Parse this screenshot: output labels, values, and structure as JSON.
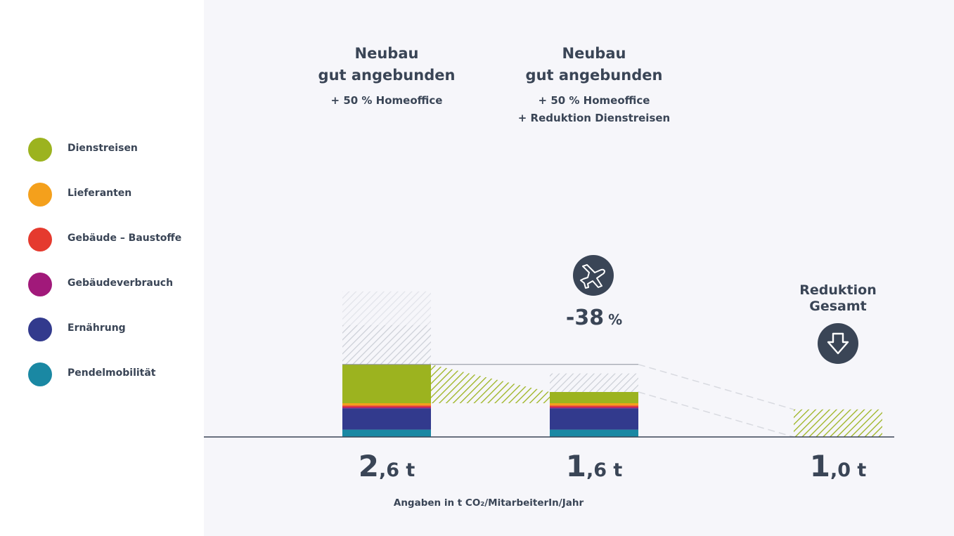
{
  "legend": [
    {
      "label": "Dienstreisen",
      "color": "#9cb31f"
    },
    {
      "label": "Lieferanten",
      "color": "#f4a01c"
    },
    {
      "label": "Gebäude – Baustoffe",
      "color": "#e53a2e"
    },
    {
      "label": "Gebäudeverbrauch",
      "color": "#a1197a"
    },
    {
      "label": "Ernährung",
      "color": "#323a8d"
    },
    {
      "label": "Pendelmobilität",
      "color": "#1a88a3"
    }
  ],
  "chart_data": {
    "type": "bar",
    "stacked": true,
    "units_label": "Angaben in t CO₂/MitarbeiterIn/Jahr",
    "categories": [
      {
        "title_line1": "Neubau",
        "title_line2": "gut angebunden",
        "subtitle": [
          "+ 50 % Homeoffice"
        ],
        "total_big": "2",
        "total_small": ",6 t"
      },
      {
        "title_line1": "Neubau",
        "title_line2": "gut angebunden",
        "subtitle": [
          "+ 50 % Homeoffice",
          "+ Reduktion Dienstreisen"
        ],
        "total_big": "1",
        "total_small": ",6 t"
      },
      {
        "title_line1": "Reduktion",
        "title_line2": "Gesamt",
        "subtitle": [],
        "total_big": "1",
        "total_small": ",0 t"
      }
    ],
    "series": [
      {
        "name": "Pendelmobilität",
        "values": [
          0.13,
          0.13,
          0
        ],
        "color": "#1a88a3"
      },
      {
        "name": "Ernährung",
        "values": [
          0.38,
          0.38,
          0
        ],
        "color": "#323a8d"
      },
      {
        "name": "Gebäudeverbrauch",
        "values": [
          0.02,
          0.02,
          0
        ],
        "color": "#a1197a"
      },
      {
        "name": "Gebäude – Baustoffe",
        "values": [
          0.03,
          0.03,
          0
        ],
        "color": "#e53a2e"
      },
      {
        "name": "Lieferanten",
        "values": [
          0.04,
          0.04,
          0
        ],
        "color": "#f4a01c"
      },
      {
        "name": "Dienstreisen",
        "values": [
          0.69,
          0.2,
          0
        ],
        "color": "#9cb31f"
      }
    ],
    "reduced_previous_stack": [
      1.3,
      0.33
    ],
    "reduction_bar_value": 0.49,
    "reduction_label": "-38 %",
    "ylim": [
      0,
      2.6
    ]
  }
}
